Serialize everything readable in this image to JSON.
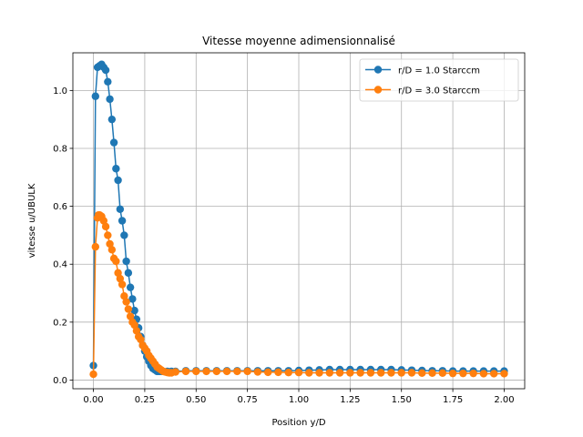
{
  "chart_data": {
    "type": "line",
    "title": "Vitesse moyenne adimensionnalisé",
    "xlabel": "Position y/D",
    "ylabel": "vitesse u/UBULK",
    "xlim": [
      -0.1,
      2.1
    ],
    "ylim": [
      -0.03,
      1.13
    ],
    "grid": true,
    "legend_position": "top-right",
    "x_ticks": [
      "0.00",
      "0.25",
      "0.50",
      "0.75",
      "1.00",
      "1.25",
      "1.50",
      "1.75",
      "2.00"
    ],
    "y_ticks": [
      "0.0",
      "0.2",
      "0.4",
      "0.6",
      "0.8",
      "1.0"
    ],
    "series": [
      {
        "name": "r/D = 1.0 Starccm",
        "color": "#1f77b4",
        "x": [
          0.0,
          0.01,
          0.02,
          0.03,
          0.04,
          0.05,
          0.06,
          0.07,
          0.08,
          0.09,
          0.1,
          0.11,
          0.12,
          0.13,
          0.14,
          0.15,
          0.16,
          0.17,
          0.18,
          0.19,
          0.2,
          0.21,
          0.22,
          0.23,
          0.24,
          0.25,
          0.26,
          0.27,
          0.28,
          0.29,
          0.3,
          0.31,
          0.32,
          0.33,
          0.34,
          0.36,
          0.38,
          0.4,
          0.45,
          0.5,
          0.55,
          0.6,
          0.65,
          0.7,
          0.75,
          0.8,
          0.85,
          0.9,
          0.95,
          1.0,
          1.05,
          1.1,
          1.15,
          1.2,
          1.25,
          1.3,
          1.35,
          1.4,
          1.45,
          1.5,
          1.55,
          1.6,
          1.65,
          1.7,
          1.75,
          1.8,
          1.85,
          1.9,
          1.95,
          2.0
        ],
        "values": [
          0.05,
          0.98,
          1.08,
          1.085,
          1.09,
          1.08,
          1.07,
          1.03,
          0.97,
          0.9,
          0.82,
          0.73,
          0.69,
          0.59,
          0.55,
          0.5,
          0.41,
          0.37,
          0.32,
          0.28,
          0.24,
          0.21,
          0.18,
          0.15,
          0.12,
          0.1,
          0.08,
          0.065,
          0.05,
          0.04,
          0.035,
          0.03,
          0.03,
          0.03,
          0.03,
          0.03,
          0.03,
          0.03,
          0.032,
          0.032,
          0.032,
          0.032,
          0.032,
          0.032,
          0.032,
          0.032,
          0.032,
          0.032,
          0.032,
          0.033,
          0.034,
          0.035,
          0.036,
          0.036,
          0.036,
          0.036,
          0.036,
          0.036,
          0.036,
          0.035,
          0.034,
          0.033,
          0.032,
          0.032,
          0.031,
          0.031,
          0.031,
          0.031,
          0.031,
          0.031
        ]
      },
      {
        "name": "r/D = 3.0 Starccm",
        "color": "#ff7f0e",
        "x": [
          0.0,
          0.01,
          0.02,
          0.025,
          0.03,
          0.04,
          0.05,
          0.06,
          0.07,
          0.08,
          0.09,
          0.1,
          0.11,
          0.12,
          0.13,
          0.14,
          0.15,
          0.16,
          0.17,
          0.18,
          0.19,
          0.2,
          0.21,
          0.22,
          0.23,
          0.24,
          0.25,
          0.26,
          0.27,
          0.28,
          0.29,
          0.3,
          0.31,
          0.32,
          0.33,
          0.34,
          0.35,
          0.36,
          0.37,
          0.38,
          0.4,
          0.45,
          0.5,
          0.55,
          0.6,
          0.65,
          0.7,
          0.75,
          0.8,
          0.85,
          0.9,
          0.95,
          1.0,
          1.05,
          1.1,
          1.15,
          1.2,
          1.25,
          1.3,
          1.35,
          1.4,
          1.45,
          1.5,
          1.55,
          1.6,
          1.65,
          1.7,
          1.75,
          1.8,
          1.85,
          1.9,
          1.95,
          2.0
        ],
        "values": [
          0.02,
          0.46,
          0.56,
          0.57,
          0.57,
          0.565,
          0.55,
          0.53,
          0.5,
          0.47,
          0.45,
          0.42,
          0.41,
          0.37,
          0.35,
          0.33,
          0.29,
          0.27,
          0.245,
          0.22,
          0.2,
          0.19,
          0.17,
          0.15,
          0.14,
          0.12,
          0.11,
          0.1,
          0.085,
          0.075,
          0.065,
          0.055,
          0.045,
          0.04,
          0.035,
          0.03,
          0.028,
          0.026,
          0.025,
          0.025,
          0.028,
          0.03,
          0.03,
          0.03,
          0.03,
          0.03,
          0.03,
          0.03,
          0.028,
          0.027,
          0.027,
          0.026,
          0.026,
          0.025,
          0.025,
          0.025,
          0.025,
          0.025,
          0.025,
          0.025,
          0.025,
          0.025,
          0.025,
          0.025,
          0.024,
          0.024,
          0.024,
          0.023,
          0.023,
          0.023,
          0.022,
          0.022,
          0.022
        ]
      }
    ]
  }
}
